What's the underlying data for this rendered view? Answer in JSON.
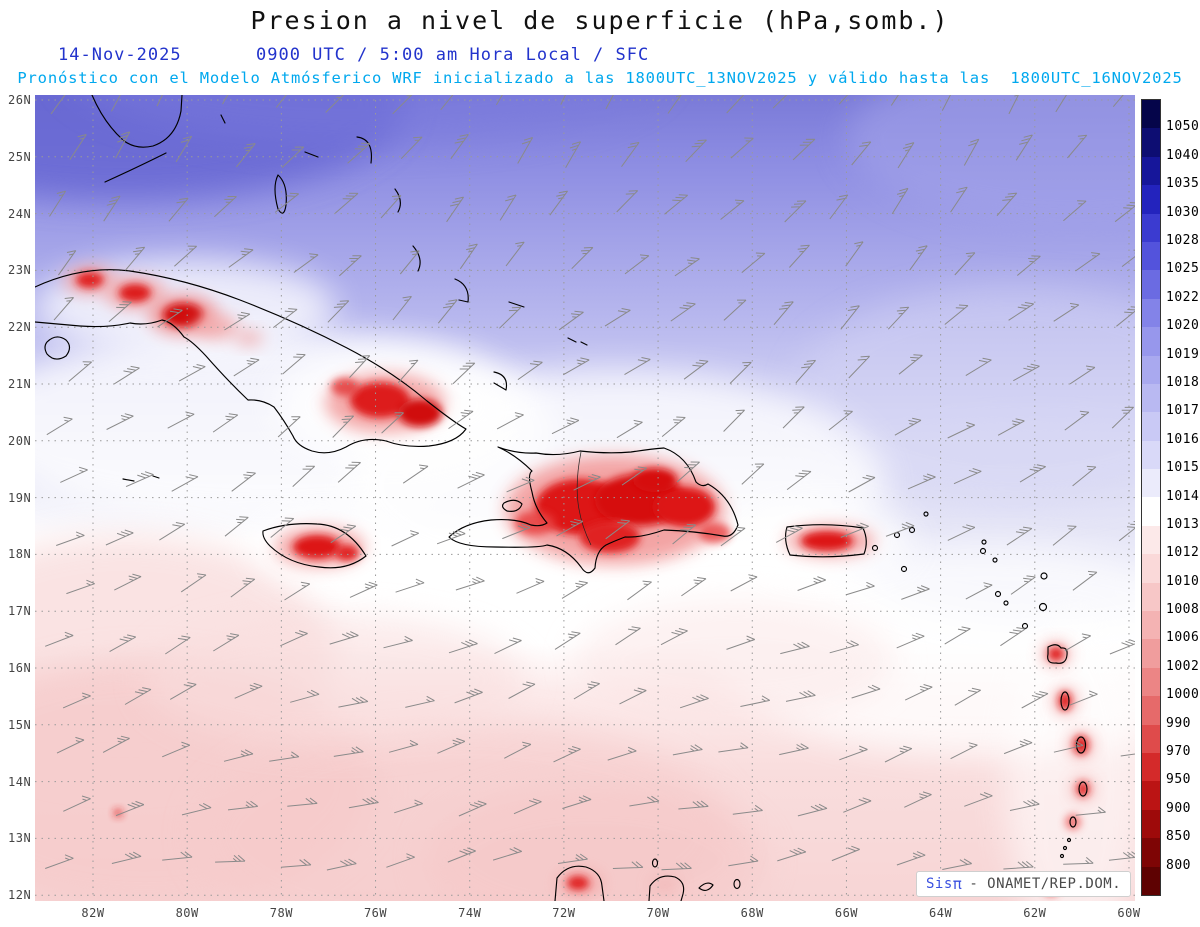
{
  "header": {
    "title": "Presion a nivel de superficie (hPa,somb.)",
    "date": "14-Nov-2025",
    "time_line": "0900 UTC / 5:00 am Hora Local / SFC",
    "forecast_line": "Pronóstico con el Modelo Atmósferico WRF inicializado a las 1800UTC_13NOV2025 y válido hasta las  1800UTC_16NOV2025",
    "title_color": "#111111",
    "date_color": "#2233cc",
    "forecast_color": "#00a8ee"
  },
  "map": {
    "lat_labels": [
      "26N",
      "25N",
      "24N",
      "23N",
      "22N",
      "21N",
      "20N",
      "19N",
      "18N",
      "17N",
      "16N",
      "15N",
      "14N",
      "13N",
      "12N"
    ],
    "lon_labels": [
      "82W",
      "80W",
      "78W",
      "76W",
      "74W",
      "72W",
      "70W",
      "68W",
      "66W",
      "64W",
      "62W",
      "60W"
    ]
  },
  "colorbar": {
    "labels": [
      "1050",
      "1040",
      "1035",
      "1030",
      "1028",
      "1025",
      "1022",
      "1020",
      "1019",
      "1018",
      "1017",
      "1016",
      "1015",
      "1014",
      "1013",
      "1012",
      "1010",
      "1008",
      "1006",
      "1002",
      "1000",
      "990",
      "970",
      "950",
      "900",
      "850",
      "800"
    ],
    "colors": [
      "#05054a",
      "#0d0d72",
      "#16169a",
      "#2323bd",
      "#3b3bd0",
      "#5353dc",
      "#6b6be2",
      "#8383e8",
      "#9797ec",
      "#a9a9ef",
      "#b9b9f2",
      "#c9c9f5",
      "#d9d9f8",
      "#ebebfb",
      "#ffffff",
      "#fce9e9",
      "#fad9d9",
      "#f7c7c7",
      "#f4b3b3",
      "#f09d9d",
      "#ec8585",
      "#e66a6a",
      "#df4b4b",
      "#d42a2a",
      "#bb1414",
      "#9e0a0a",
      "#7e0505",
      "#5e0202"
    ]
  },
  "watermark": {
    "brand": "Sis",
    "symbol": "π",
    "rest": "- ONAMET/REP.DOM."
  },
  "chart_data": {
    "type": "heatmap",
    "title": "Presion a nivel de superficie (hPa,somb.)",
    "variable": "surface pressure",
    "units": "hPa",
    "lat_ticks": [
      "26N",
      "25N",
      "24N",
      "23N",
      "22N",
      "21N",
      "20N",
      "19N",
      "18N",
      "17N",
      "16N",
      "15N",
      "14N",
      "13N",
      "12N"
    ],
    "lon_ticks": [
      "82W",
      "80W",
      "78W",
      "76W",
      "74W",
      "72W",
      "70W",
      "68W",
      "66W",
      "64W",
      "62W",
      "60W"
    ],
    "color_levels_hpa": [
      1050,
      1040,
      1035,
      1030,
      1028,
      1025,
      1022,
      1020,
      1019,
      1018,
      1017,
      1016,
      1015,
      1014,
      1013,
      1012,
      1010,
      1008,
      1006,
      1002,
      1000,
      990,
      970,
      950,
      900,
      850,
      800
    ],
    "field_summary": {
      "northwest_corner": "1020-1025 (darkest blue-violet shading)",
      "north_atlantic_band": "1015-1019 (blue to pale lavender, lightening southward)",
      "central_white_band": "1013-1014 across the Greater Antilles",
      "southern_caribbean": "1010-1012 (pale pink shading south of 18N)",
      "island_red_cores": "strong red minima over western and eastern Cuba, Jamaica, Hispaniola, Puerto Rico and the Lesser Antilles arc"
    },
    "overlays": [
      "wind barbs (gray)",
      "coastlines (black)",
      "dotted lat-lon grid"
    ]
  }
}
